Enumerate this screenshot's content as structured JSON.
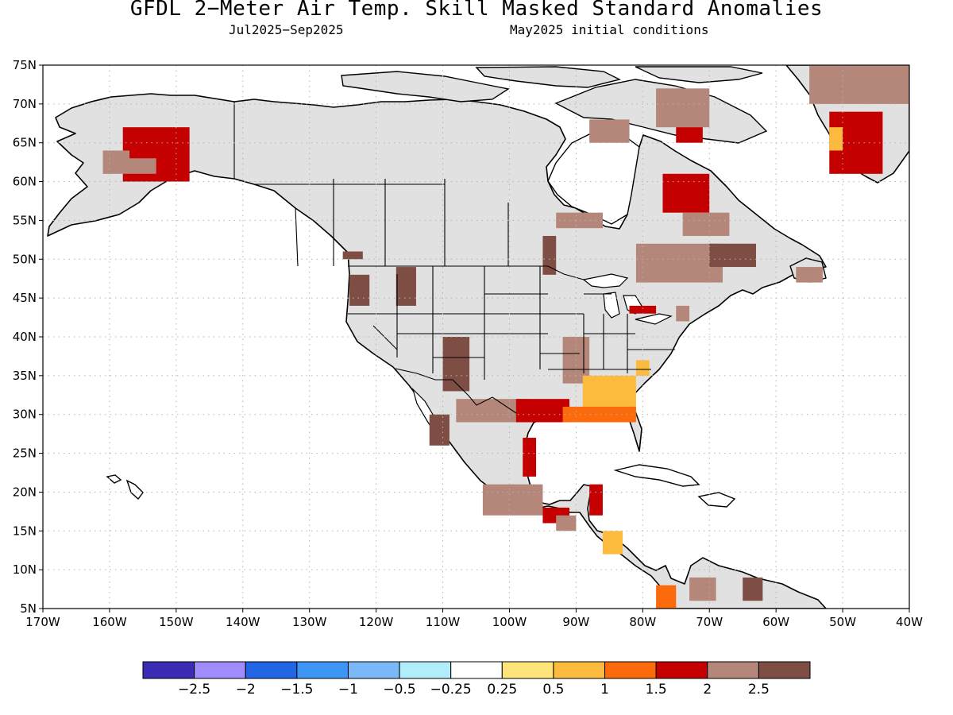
{
  "title": "GFDL 2−Meter Air Temp. Skill Masked Standard Anomalies",
  "subtitle_left": "Jul2025−Sep2025",
  "subtitle_right": "May2025 initial conditions",
  "colors": {
    "mask_gray": "#e1e1e1",
    "coast": "#000000",
    "gridline": "#b4b4b4",
    "ocean": "#ffffff"
  },
  "chart_data": {
    "type": "heatmap",
    "projection": "cylindrical-equidistant",
    "lon_range": [
      -170,
      -40
    ],
    "lat_range": [
      5,
      75
    ],
    "x_ticks": [
      "170W",
      "160W",
      "150W",
      "140W",
      "130W",
      "120W",
      "110W",
      "100W",
      "90W",
      "80W",
      "70W",
      "60W",
      "50W",
      "40W"
    ],
    "x_tick_values": [
      -170,
      -160,
      -150,
      -140,
      -130,
      -120,
      -110,
      -100,
      -90,
      -80,
      -70,
      -60,
      -50,
      -40
    ],
    "y_ticks": [
      "5N",
      "10N",
      "15N",
      "20N",
      "25N",
      "30N",
      "35N",
      "40N",
      "45N",
      "50N",
      "55N",
      "60N",
      "65N",
      "70N",
      "75N"
    ],
    "y_tick_values": [
      5,
      10,
      15,
      20,
      25,
      30,
      35,
      40,
      45,
      50,
      55,
      60,
      65,
      70,
      75
    ],
    "grid": true,
    "colorbar": {
      "colors": [
        "#3c2bb4",
        "#a08cfc",
        "#2266e6",
        "#3e96f4",
        "#7bb8f7",
        "#b0eefc",
        "#ffffff",
        "#fde47b",
        "#fcbb3d",
        "#fb6a0b",
        "#c40000",
        "#b4877a",
        "#7e4e44"
      ],
      "labels": [
        "−2.5",
        "−2",
        "−1.5",
        "−1",
        "−0.5",
        "−0.25",
        "0.25",
        "0.5",
        "1",
        "1.5",
        "2",
        "2.5"
      ]
    },
    "anomaly_regions": [
      {
        "lon": [
          -158,
          -148
        ],
        "lat": [
          60,
          67
        ],
        "value": 1.75
      },
      {
        "lon": [
          -161,
          -153
        ],
        "lat": [
          61,
          64
        ],
        "value": 2.0
      },
      {
        "lon": [
          -157,
          -151
        ],
        "lat": [
          63,
          66
        ],
        "value": 1.5
      },
      {
        "lon": [
          -88,
          -82
        ],
        "lat": [
          65,
          68
        ],
        "value": 2.0
      },
      {
        "lon": [
          -78,
          -70
        ],
        "lat": [
          67,
          72
        ],
        "value": 2.0
      },
      {
        "lon": [
          -75,
          -71
        ],
        "lat": [
          65,
          67
        ],
        "value": 1.5
      },
      {
        "lon": [
          -55,
          -40
        ],
        "lat": [
          70,
          75
        ],
        "value": 2.0
      },
      {
        "lon": [
          -52,
          -44
        ],
        "lat": [
          61,
          69
        ],
        "value": 1.5
      },
      {
        "lon": [
          -52,
          -50
        ],
        "lat": [
          64,
          67
        ],
        "value": 0.75
      },
      {
        "lon": [
          -77,
          -70
        ],
        "lat": [
          56,
          61
        ],
        "value": 1.5
      },
      {
        "lon": [
          -74,
          -67
        ],
        "lat": [
          53,
          56
        ],
        "value": 2.0
      },
      {
        "lon": [
          -81,
          -68
        ],
        "lat": [
          47,
          52
        ],
        "value": 2.0
      },
      {
        "lon": [
          -70,
          -63
        ],
        "lat": [
          49,
          52
        ],
        "value": 2.5
      },
      {
        "lon": [
          -57,
          -53
        ],
        "lat": [
          47,
          49
        ],
        "value": 2.0
      },
      {
        "lon": [
          -93,
          -86
        ],
        "lat": [
          54,
          56
        ],
        "value": 2.0
      },
      {
        "lon": [
          -95,
          -93
        ],
        "lat": [
          48,
          53
        ],
        "value": 2.5
      },
      {
        "lon": [
          -125,
          -122
        ],
        "lat": [
          50,
          51
        ],
        "value": 2.5
      },
      {
        "lon": [
          -124,
          -121
        ],
        "lat": [
          44,
          48
        ],
        "value": 2.5
      },
      {
        "lon": [
          -117,
          -114
        ],
        "lat": [
          44,
          49
        ],
        "value": 2.5
      },
      {
        "lon": [
          -110,
          -106
        ],
        "lat": [
          33,
          40
        ],
        "value": 2.5
      },
      {
        "lon": [
          -112,
          -109
        ],
        "lat": [
          26,
          30
        ],
        "value": 2.5
      },
      {
        "lon": [
          -108,
          -97
        ],
        "lat": [
          29,
          32
        ],
        "value": 2.0
      },
      {
        "lon": [
          -99,
          -91
        ],
        "lat": [
          29,
          32
        ],
        "value": 1.5
      },
      {
        "lon": [
          -92,
          -88
        ],
        "lat": [
          34,
          40
        ],
        "value": 2.0
      },
      {
        "lon": [
          -89,
          -81
        ],
        "lat": [
          31,
          35
        ],
        "value": 0.75
      },
      {
        "lon": [
          -92,
          -81
        ],
        "lat": [
          29,
          31
        ],
        "value": 1.0
      },
      {
        "lon": [
          -98,
          -96
        ],
        "lat": [
          22,
          27
        ],
        "value": 1.5
      },
      {
        "lon": [
          -104,
          -95
        ],
        "lat": [
          17,
          21
        ],
        "value": 2.0
      },
      {
        "lon": [
          -95,
          -91
        ],
        "lat": [
          16,
          18
        ],
        "value": 1.5
      },
      {
        "lon": [
          -93,
          -90
        ],
        "lat": [
          15,
          17
        ],
        "value": 2.0
      },
      {
        "lon": [
          -88,
          -86
        ],
        "lat": [
          17,
          21
        ],
        "value": 1.5
      },
      {
        "lon": [
          -86,
          -83
        ],
        "lat": [
          12,
          15
        ],
        "value": 0.75
      },
      {
        "lon": [
          -78,
          -75
        ],
        "lat": [
          5,
          8
        ],
        "value": 1.25
      },
      {
        "lon": [
          -73,
          -69
        ],
        "lat": [
          6,
          9
        ],
        "value": 2.0
      },
      {
        "lon": [
          -65,
          -62
        ],
        "lat": [
          6,
          9
        ],
        "value": 2.5
      },
      {
        "lon": [
          -82,
          -78
        ],
        "lat": [
          43,
          44
        ],
        "value": 1.5
      },
      {
        "lon": [
          -81,
          -79
        ],
        "lat": [
          35,
          37
        ],
        "value": 0.75
      },
      {
        "lon": [
          -75,
          -73
        ],
        "lat": [
          42,
          44
        ],
        "value": 2.0
      }
    ]
  }
}
